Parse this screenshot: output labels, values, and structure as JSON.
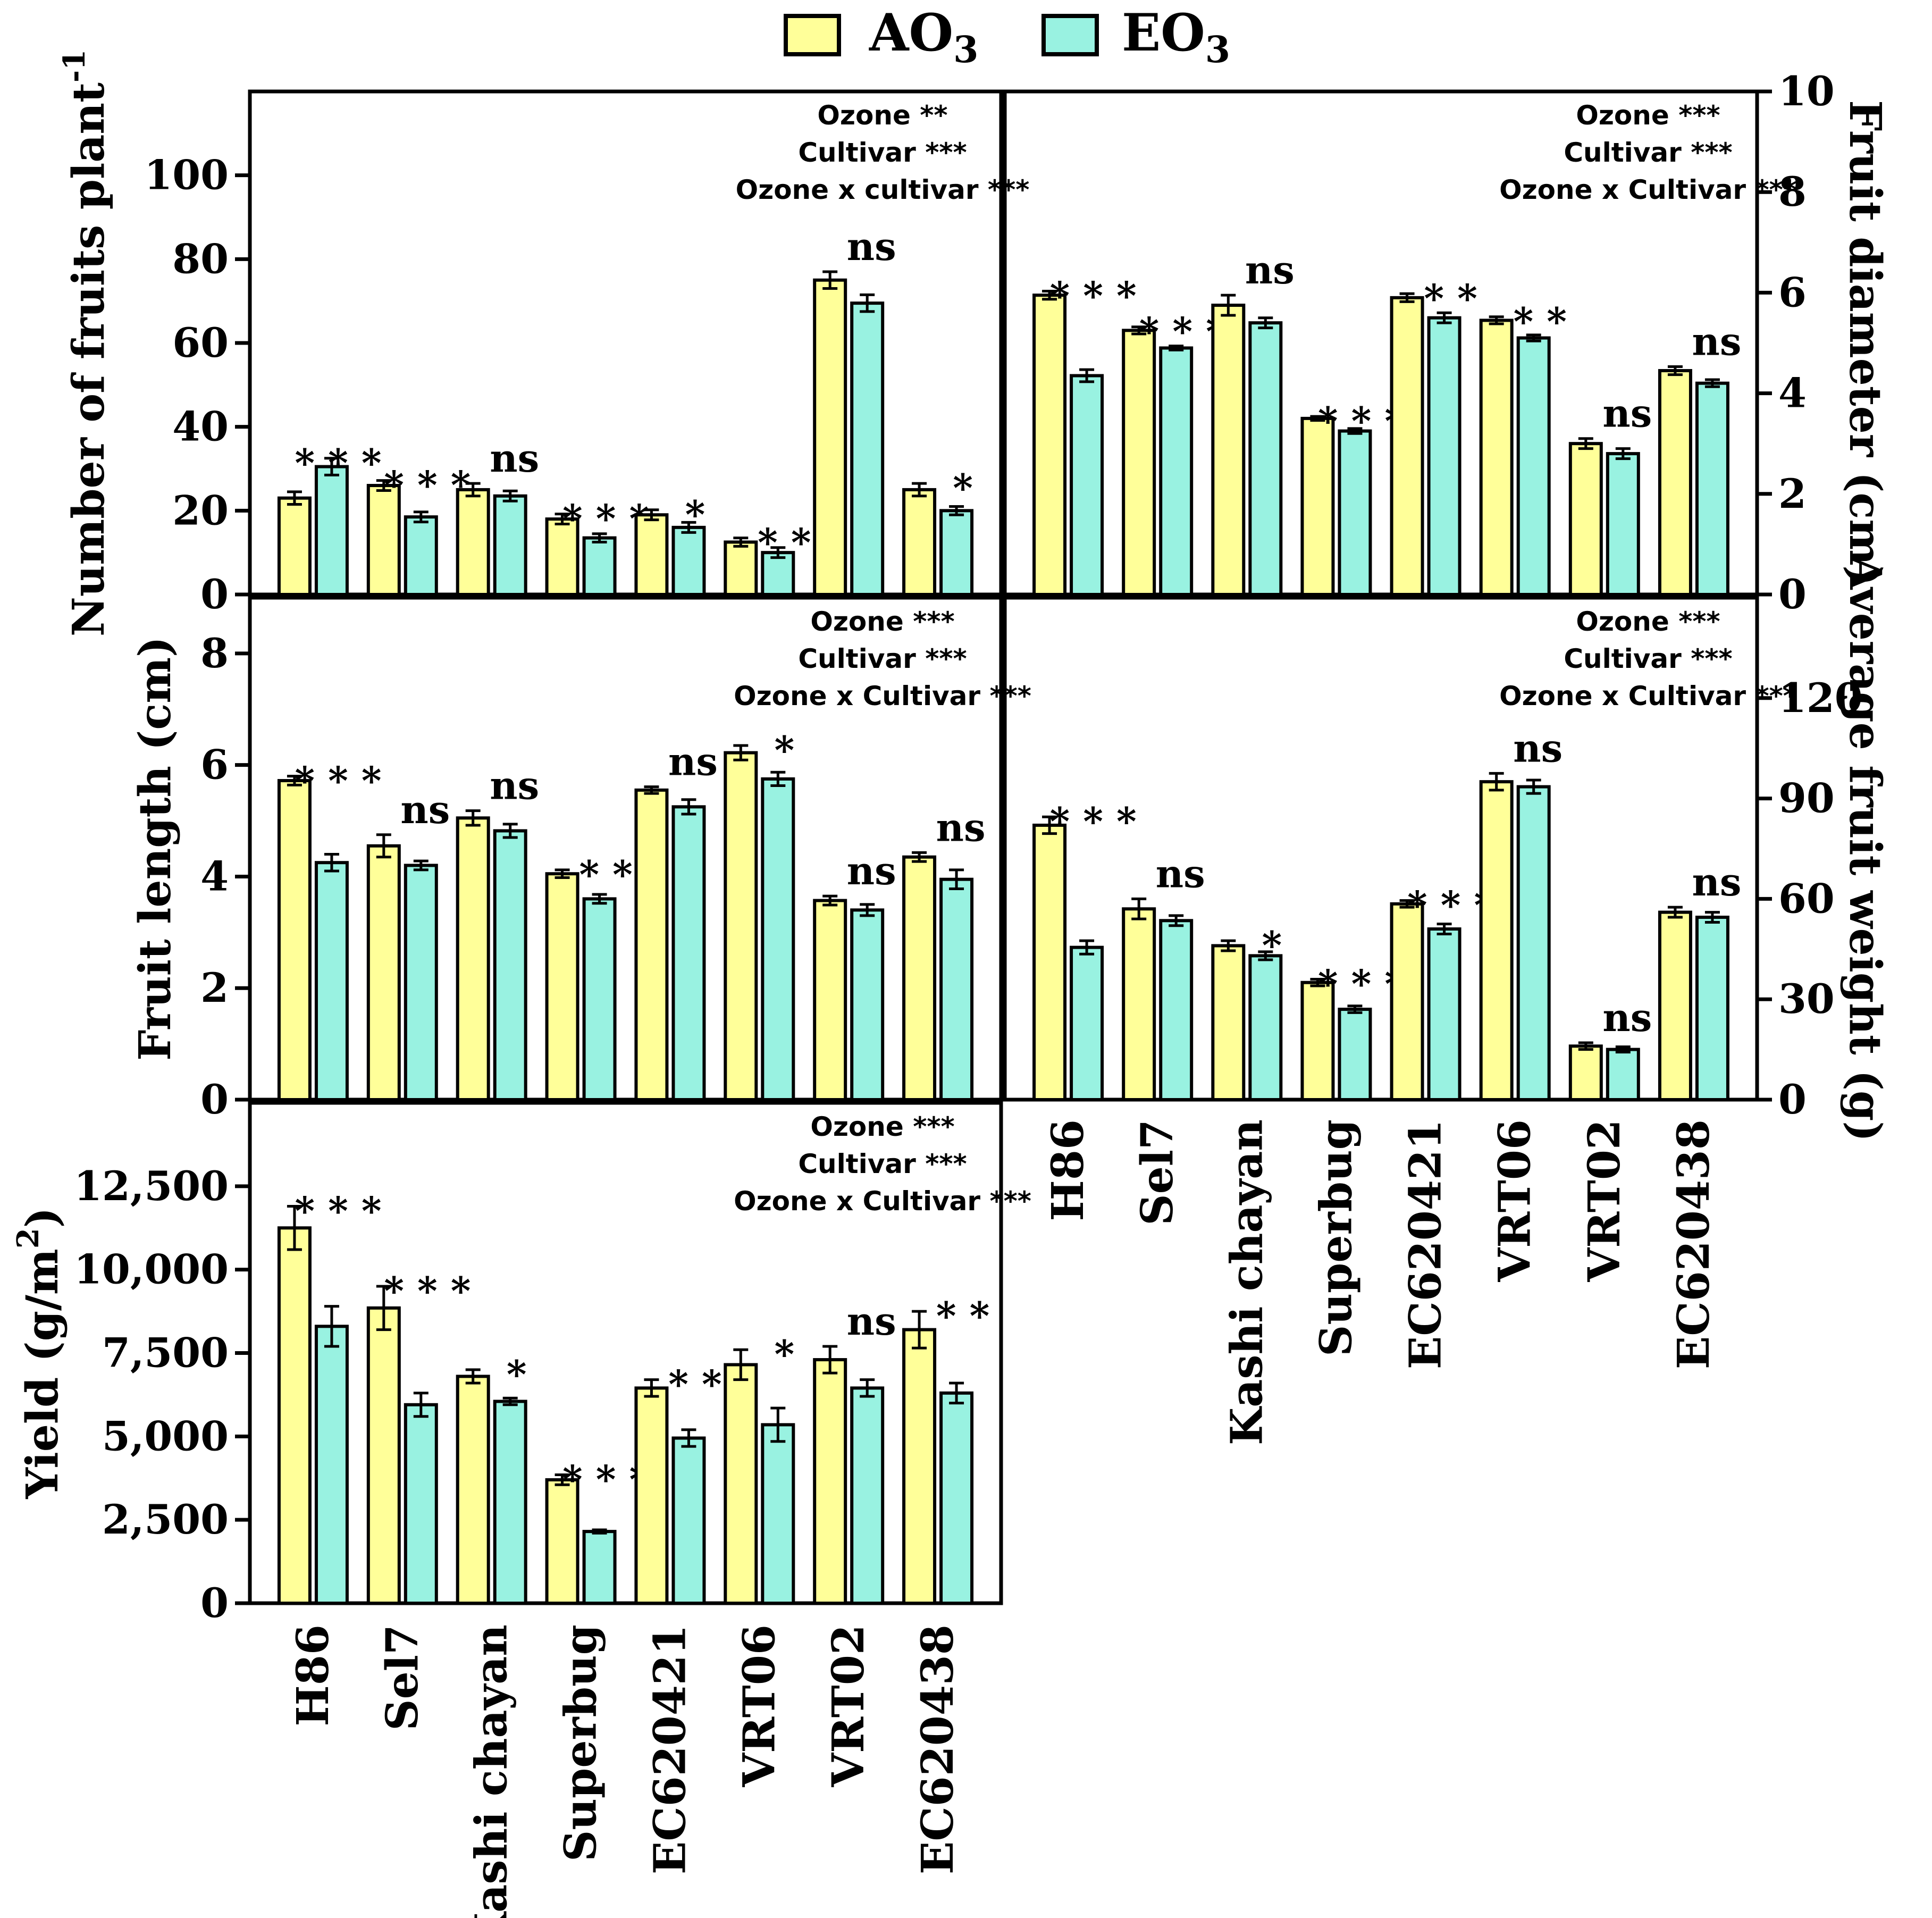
{
  "colors": {
    "ao3": "#ffff99",
    "eo3": "#99f2e1",
    "stroke": "#000000"
  },
  "legend": [
    {
      "key": "ao3",
      "base": "AO",
      "sub": "3"
    },
    {
      "key": "eo3",
      "base": "EO",
      "sub": "3"
    }
  ],
  "chart_data": [
    {
      "id": "fruits",
      "type": "bar",
      "ylabel": "Number of fruits plant",
      "ylabel_sup": "-1",
      "yticks": [
        0,
        20,
        40,
        60,
        80,
        100
      ],
      "ylim": [
        0,
        120
      ],
      "categories": [
        "H86",
        "Sel7",
        "Kashi chayan",
        "Superbug",
        "EC620421",
        "VRT06",
        "VRT02",
        "EC620438"
      ],
      "series": [
        {
          "name": "AO3",
          "values": [
            23,
            26,
            25,
            18,
            19,
            12.5,
            75,
            25
          ],
          "errors": [
            1.5,
            1.2,
            1.5,
            1.2,
            1.2,
            1.0,
            2.0,
            1.5
          ]
        },
        {
          "name": "EO3",
          "values": [
            30.5,
            18.5,
            23.5,
            13.5,
            16,
            10,
            69.5,
            20
          ],
          "errors": [
            2.0,
            1.2,
            1.2,
            1.0,
            1.2,
            1.2,
            2.0,
            1.0
          ]
        }
      ],
      "significance": [
        "***",
        "***",
        "ns",
        "***",
        "*",
        "**",
        "ns",
        "*"
      ],
      "stats": [
        "Ozone **",
        "Cultivar ***",
        "Ozone x cultivar ***"
      ]
    },
    {
      "id": "diameter",
      "type": "bar",
      "ylabel": "Fruit diameter (cm)",
      "yticks": [
        0,
        2,
        4,
        6,
        8,
        10
      ],
      "ylim": [
        0,
        10
      ],
      "categories": [
        "H86",
        "Sel7",
        "Kashi chayan",
        "Superbug",
        "EC620421",
        "VRT06",
        "VRT02",
        "EC620438"
      ],
      "series": [
        {
          "name": "AO3",
          "values": [
            5.95,
            5.25,
            5.75,
            3.5,
            5.9,
            5.45,
            3.0,
            4.45
          ],
          "errors": [
            0.08,
            0.07,
            0.2,
            0.04,
            0.08,
            0.07,
            0.1,
            0.08
          ]
        },
        {
          "name": "EO3",
          "values": [
            4.35,
            4.9,
            5.4,
            3.25,
            5.5,
            5.1,
            2.8,
            4.2
          ],
          "errors": [
            0.12,
            0.04,
            0.1,
            0.05,
            0.1,
            0.06,
            0.1,
            0.07
          ]
        }
      ],
      "significance": [
        "***",
        "***",
        "ns",
        "***",
        "**",
        "**",
        "ns",
        "ns"
      ],
      "stats": [
        "Ozone ***",
        "Cultivar ***",
        "Ozone x Cultivar ***"
      ]
    },
    {
      "id": "length",
      "type": "bar",
      "ylabel": "Fruit length (cm)",
      "yticks": [
        0,
        2,
        4,
        6,
        8
      ],
      "ylim": [
        0,
        9
      ],
      "categories": [
        "H86",
        "Sel7",
        "Kashi chayan",
        "Superbug",
        "EC620421",
        "VRT06",
        "VRT02",
        "EC620438"
      ],
      "series": [
        {
          "name": "AO3",
          "values": [
            5.72,
            4.55,
            5.05,
            4.05,
            5.55,
            6.22,
            3.57,
            4.35
          ],
          "errors": [
            0.08,
            0.2,
            0.13,
            0.07,
            0.06,
            0.13,
            0.08,
            0.08
          ]
        },
        {
          "name": "EO3",
          "values": [
            4.25,
            4.2,
            4.82,
            3.6,
            5.25,
            5.75,
            3.4,
            3.95
          ],
          "errors": [
            0.15,
            0.08,
            0.12,
            0.08,
            0.13,
            0.12,
            0.1,
            0.17
          ]
        }
      ],
      "significance": [
        "***",
        "ns",
        "ns",
        "**",
        "ns",
        "*",
        "ns",
        "ns"
      ],
      "stats": [
        "Ozone ***",
        "Cultivar ***",
        "Ozone x Cultivar ***"
      ]
    },
    {
      "id": "weight",
      "type": "bar",
      "ylabel": "Average fruit weight (g)",
      "yticks": [
        0,
        30,
        60,
        90,
        120
      ],
      "ylim": [
        0,
        150
      ],
      "categories": [
        "H86",
        "Sel7",
        "Kashi chayan",
        "Superbug",
        "EC620421",
        "VRT06",
        "VRT02",
        "EC620438"
      ],
      "series": [
        {
          "name": "AO3",
          "values": [
            82,
            57,
            46,
            35,
            58.5,
            95,
            16,
            56
          ],
          "errors": [
            2.5,
            3.0,
            1.5,
            1.0,
            1.0,
            2.5,
            1.0,
            1.5
          ]
        },
        {
          "name": "EO3",
          "values": [
            45.5,
            53.5,
            43,
            27,
            51,
            93.5,
            15,
            54.5
          ],
          "errors": [
            2.0,
            1.5,
            1.2,
            1.0,
            1.5,
            2.0,
            0.8,
            1.5
          ]
        }
      ],
      "significance": [
        "***",
        "ns",
        "*",
        "***",
        "***",
        "ns",
        "ns",
        "ns"
      ],
      "stats": [
        "Ozone ***",
        "Cultivar ***",
        "Ozone x Cultivar ***"
      ]
    },
    {
      "id": "yield",
      "type": "bar",
      "ylabel": "Yield (g/m",
      "ylabel_sup": "2",
      "ylabel_end": ")",
      "yticks": [
        0,
        2500,
        5000,
        7500,
        10000,
        12500
      ],
      "ytick_labels": [
        "0",
        "2,500",
        "5,000",
        "7,500",
        "10,000",
        "12,500"
      ],
      "ylim": [
        0,
        15000
      ],
      "categories": [
        "H86",
        "Sel7",
        "Kashi chayan",
        "Superbug",
        "EC620421",
        "VRT06",
        "VRT02",
        "EC620438"
      ],
      "series": [
        {
          "name": "AO3",
          "values": [
            11250,
            8850,
            6800,
            3700,
            6450,
            7150,
            7300,
            8200
          ],
          "errors": [
            650,
            650,
            200,
            150,
            250,
            450,
            400,
            550
          ]
        },
        {
          "name": "EO3",
          "values": [
            8300,
            5950,
            6050,
            2150,
            4950,
            5350,
            6450,
            6300
          ],
          "errors": [
            600,
            350,
            100,
            50,
            250,
            500,
            250,
            300
          ]
        }
      ],
      "significance": [
        "***",
        "***",
        "*",
        "***",
        "**",
        "*",
        "ns",
        "**"
      ],
      "stats": [
        "Ozone ***",
        "Cultivar ***",
        "Ozone x Cultivar ***"
      ]
    }
  ]
}
